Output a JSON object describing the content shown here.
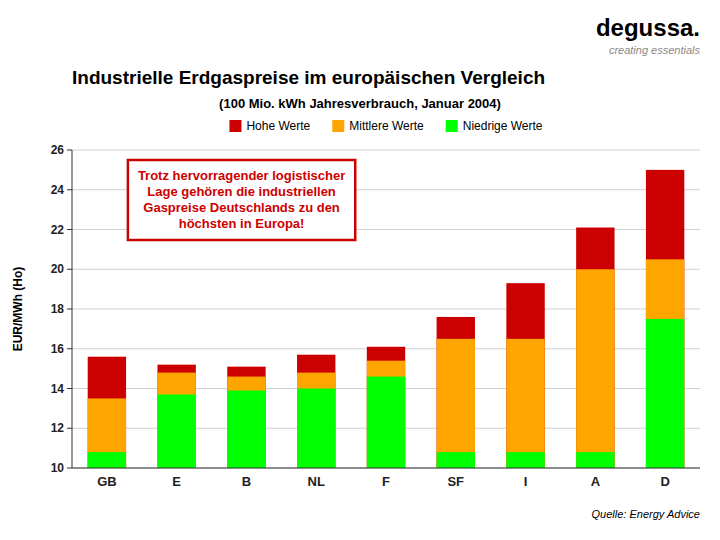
{
  "chart_data": {
    "type": "bar",
    "title": "Industrielle Erdgaspreise im europäischen Vergleich",
    "subtitle": "(100 Mio. kWh Jahresverbrauch, Januar 2004)",
    "ylabel": "EUR/MWh (Ho)",
    "categories": [
      "GB",
      "E",
      "B",
      "NL",
      "F",
      "SF",
      "I",
      "A",
      "D"
    ],
    "series": [
      {
        "name": "Niedrige Werte",
        "color": "#00ff00",
        "values": [
          10.8,
          13.7,
          13.9,
          14.0,
          14.6,
          10.8,
          10.8,
          10.8,
          17.5
        ]
      },
      {
        "name": "Mittlere Werte",
        "color": "#ffa500",
        "values": [
          13.5,
          14.8,
          14.6,
          14.8,
          15.4,
          16.5,
          16.5,
          20.0,
          20.5
        ]
      },
      {
        "name": "Hohe Werte",
        "color": "#cc0000",
        "values": [
          15.6,
          15.2,
          15.1,
          15.7,
          16.1,
          17.6,
          19.3,
          22.1,
          25.0
        ]
      }
    ],
    "stacked": false,
    "ylim": [
      10,
      26
    ],
    "yticks": [
      10,
      12,
      14,
      16,
      18,
      20,
      22,
      24,
      26
    ],
    "grid": true,
    "legend": "top",
    "annotation": "Trotz hervorragender logistischer\nLage gehören die industriellen\nGaspreise Deutschlands zu den\nhöchsten in Europa!",
    "source": "Quelle: Energy Advice",
    "logo": "degussa.",
    "logo_tagline": "creating essentials"
  }
}
